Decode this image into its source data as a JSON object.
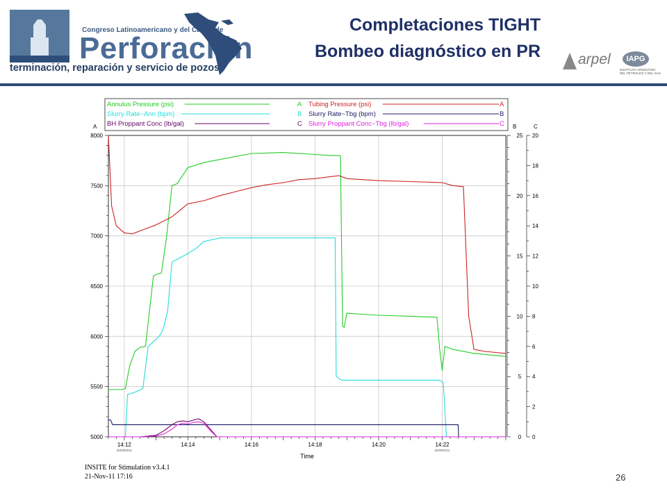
{
  "header": {
    "logo": {
      "small_text": "Congreso Latinoamericano y del Caribe de",
      "big_text": "Perforación",
      "subtitle": "terminación, reparación y servicio de pozos"
    },
    "title_line1": "Completaciones TIGHT",
    "title_line2": "Bombeo diagnóstico en PR",
    "partner_logos": {
      "arpel": "arpel",
      "iapg": "IAPG",
      "iapg_sub": "INSTITUTO ARGENTINO DEL PETROLEO Y DEL GAS"
    }
  },
  "footer": {
    "software": "INSITE for Stimulation v3.4.1",
    "datetime": "21-Nov-11 17:16",
    "page_number": "26"
  },
  "colors": {
    "brand_blue": "#2e4d7a",
    "title_blue": "#1f3066"
  },
  "chart_data": {
    "type": "line",
    "xlabel": "Time",
    "x_ticks": [
      "14:12",
      "14:14",
      "14:16",
      "14:18",
      "14:20",
      "14:22"
    ],
    "x_range": [
      "14:11:30",
      "14:24:00"
    ],
    "grid": true,
    "axes": {
      "A": {
        "ylim": [
          5000,
          8000
        ],
        "ticks": [
          5000,
          5500,
          6000,
          6500,
          7000,
          7500,
          8000
        ]
      },
      "B": {
        "ylim": [
          0,
          25
        ],
        "ticks": [
          0,
          5,
          10,
          15,
          20,
          25
        ]
      },
      "C": {
        "ylim": [
          0,
          20
        ],
        "ticks": [
          0,
          2,
          4,
          6,
          8,
          10,
          12,
          14,
          16,
          18,
          20
        ]
      }
    },
    "event_marks": [
      "20/09/2011",
      "20/09/2011"
    ],
    "legend": [
      {
        "name": "Annulus Pressure (psi)",
        "axis": "A",
        "color": "#22cc22"
      },
      {
        "name": "Tubing Pressure (psi)",
        "axis": "A",
        "color": "#cc2222"
      },
      {
        "name": "Slurry Rate~Ann (bpm)",
        "axis": "B",
        "color": "#22dddd"
      },
      {
        "name": "Slurry Rate~Tbg (bpm)",
        "axis": "B",
        "color": "#1a1a66"
      },
      {
        "name": "BH Proppant Conc (lb/gal)",
        "axis": "C",
        "color": "#660066"
      },
      {
        "name": "Slurry Proppant Conc~Tbg (lb/gal)",
        "axis": "C",
        "color": "#dd22dd"
      }
    ],
    "series": [
      {
        "name": "Annulus Pressure (psi)",
        "axis": "A",
        "color": "#22cc22",
        "x": [
          "14:11:30",
          "14:11:55",
          "14:12:02",
          "14:12:10",
          "14:12:20",
          "14:12:30",
          "14:12:40",
          "14:12:55",
          "14:13:02",
          "14:13:10",
          "14:13:20",
          "14:13:30",
          "14:13:40",
          "14:14:00",
          "14:14:30",
          "14:15:00",
          "14:16:00",
          "14:17:00",
          "14:18:00",
          "14:18:30",
          "14:18:48",
          "14:18:52",
          "14:18:55",
          "14:19:00",
          "14:19:30",
          "14:20:00",
          "14:21:00",
          "14:21:50",
          "14:21:55",
          "14:22:00",
          "14:22:05",
          "14:22:20",
          "14:23:00",
          "14:24:00"
        ],
        "y": [
          5470,
          5470,
          5480,
          5700,
          5850,
          5890,
          5900,
          6600,
          6620,
          6630,
          7000,
          7500,
          7520,
          7680,
          7730,
          7760,
          7820,
          7830,
          7810,
          7800,
          7800,
          6100,
          6090,
          6230,
          6220,
          6210,
          6200,
          6190,
          5880,
          5660,
          5900,
          5870,
          5830,
          5800
        ]
      },
      {
        "name": "Tubing Pressure (psi)",
        "axis": "A",
        "color": "#cc2222",
        "x": [
          "14:11:30",
          "14:11:36",
          "14:11:45",
          "14:12:00",
          "14:12:15",
          "14:12:30",
          "14:13:00",
          "14:13:30",
          "14:14:00",
          "14:14:30",
          "14:15:00",
          "14:15:30",
          "14:16:00",
          "14:16:30",
          "14:17:00",
          "14:17:30",
          "14:18:00",
          "14:18:30",
          "14:18:45",
          "14:19:00",
          "14:19:30",
          "14:20:00",
          "14:21:00",
          "14:22:00",
          "14:22:20",
          "14:22:40",
          "14:22:50",
          "14:23:00",
          "14:23:20",
          "14:24:00"
        ],
        "y": [
          8000,
          7300,
          7100,
          7030,
          7020,
          7050,
          7110,
          7190,
          7320,
          7350,
          7400,
          7440,
          7480,
          7510,
          7530,
          7560,
          7570,
          7590,
          7600,
          7570,
          7560,
          7550,
          7540,
          7530,
          7500,
          7490,
          6200,
          5870,
          5850,
          5830
        ]
      },
      {
        "name": "Slurry Rate~Ann (bpm)",
        "axis": "B",
        "color": "#22dddd",
        "x": [
          "14:11:30",
          "14:12:00",
          "14:12:02",
          "14:12:06",
          "14:12:20",
          "14:12:30",
          "14:12:35",
          "14:12:45",
          "14:12:58",
          "14:13:05",
          "14:13:10",
          "14:13:15",
          "14:13:22",
          "14:13:30",
          "14:14:00",
          "14:14:15",
          "14:14:30",
          "14:15:00",
          "14:16:00",
          "14:17:00",
          "14:18:00",
          "14:18:38",
          "14:18:40",
          "14:18:50",
          "14:19:30",
          "14:20:00",
          "14:21:00",
          "14:21:55",
          "14:22:02",
          "14:22:08",
          "14:24:00"
        ],
        "y": [
          0,
          0,
          0,
          3.5,
          3.7,
          3.9,
          4.0,
          7.5,
          8.0,
          8.3,
          8.6,
          9.2,
          10.5,
          14.5,
          15.2,
          15.6,
          16.2,
          16.5,
          16.5,
          16.5,
          16.5,
          16.5,
          5.0,
          4.7,
          4.7,
          4.7,
          4.7,
          4.7,
          4.5,
          0,
          0
        ]
      },
      {
        "name": "Slurry Rate~Tbg (bpm)",
        "axis": "B",
        "color": "#1a1a66",
        "x": [
          "14:11:30",
          "14:11:34",
          "14:11:38",
          "14:11:42",
          "14:12:00",
          "14:14:00",
          "14:16:00",
          "14:18:00",
          "14:20:00",
          "14:22:00",
          "14:22:30",
          "14:22:31",
          "14:24:00"
        ],
        "y": [
          1.4,
          1.4,
          1.0,
          1.0,
          1.0,
          1.0,
          1.0,
          1.0,
          1.0,
          1.0,
          1.0,
          0,
          0
        ]
      },
      {
        "name": "BH Proppant Conc (lb/gal)",
        "axis": "C",
        "color": "#660066",
        "x": [
          "14:11:30",
          "14:12:30",
          "14:13:00",
          "14:13:15",
          "14:13:30",
          "14:13:40",
          "14:13:50",
          "14:14:00",
          "14:14:10",
          "14:14:20",
          "14:14:30",
          "14:14:40",
          "14:14:50",
          "14:14:55",
          "14:24:00"
        ],
        "y": [
          0,
          0,
          0.1,
          0.4,
          0.8,
          1.0,
          1.05,
          1.0,
          1.1,
          1.2,
          1.0,
          0.6,
          0.2,
          0,
          0
        ]
      },
      {
        "name": "Slurry Proppant Conc~Tbg (lb/gal)",
        "axis": "C",
        "color": "#dd22dd",
        "x": [
          "14:11:30",
          "14:12:30",
          "14:13:00",
          "14:13:15",
          "14:13:30",
          "14:13:40",
          "14:13:50",
          "14:14:00",
          "14:14:10",
          "14:14:20",
          "14:14:30",
          "14:14:40",
          "14:14:50",
          "14:14:55",
          "14:24:00"
        ],
        "y": [
          0,
          0,
          0.05,
          0.2,
          0.5,
          0.8,
          0.9,
          0.85,
          0.95,
          1.0,
          0.9,
          0.5,
          0.15,
          0,
          0
        ]
      }
    ]
  }
}
